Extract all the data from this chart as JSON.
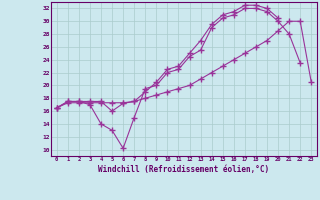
{
  "xlabel": "Windchill (Refroidissement éolien,°C)",
  "bg_color": "#cce8ee",
  "grid_color": "#aacccc",
  "line_color": "#993399",
  "xlim": [
    -0.5,
    23.5
  ],
  "ylim": [
    9,
    33
  ],
  "xticks": [
    0,
    1,
    2,
    3,
    4,
    5,
    6,
    7,
    8,
    9,
    10,
    11,
    12,
    13,
    14,
    15,
    16,
    17,
    18,
    19,
    20,
    21,
    22,
    23
  ],
  "yticks": [
    10,
    12,
    14,
    16,
    18,
    20,
    22,
    24,
    26,
    28,
    30,
    32
  ],
  "line1_x": [
    0,
    1,
    2,
    3,
    4,
    5,
    6,
    7,
    8,
    9,
    10,
    11,
    12,
    13,
    14,
    15,
    16,
    17,
    18,
    19,
    20,
    21,
    22
  ],
  "line1_y": [
    16.5,
    17.5,
    17.5,
    17.0,
    14.0,
    13.0,
    10.2,
    15.0,
    19.5,
    20.0,
    22.0,
    22.5,
    24.5,
    25.5,
    29.0,
    30.5,
    31.0,
    32.0,
    32.0,
    31.5,
    30.0,
    28.0,
    23.5
  ],
  "line2_x": [
    0,
    1,
    2,
    3,
    4,
    5,
    6,
    7,
    8,
    9,
    10,
    11,
    12,
    13,
    14,
    15,
    16,
    17,
    18,
    19,
    20,
    21,
    22,
    23
  ],
  "line2_y": [
    16.5,
    17.3,
    17.3,
    17.3,
    17.3,
    17.3,
    17.3,
    17.5,
    18.0,
    18.5,
    19.0,
    19.5,
    20.0,
    21.0,
    22.0,
    23.0,
    24.0,
    25.0,
    26.0,
    27.0,
    28.5,
    30.0,
    30.0,
    20.5
  ],
  "line3_x": [
    0,
    1,
    2,
    3,
    4,
    5,
    6,
    7,
    8,
    9,
    10,
    11,
    12,
    13,
    14,
    15,
    16,
    17,
    18,
    19,
    20
  ],
  "line3_y": [
    16.5,
    17.5,
    17.5,
    17.5,
    17.5,
    16.0,
    17.2,
    17.5,
    19.0,
    20.5,
    22.5,
    23.0,
    25.0,
    27.0,
    29.5,
    31.0,
    31.5,
    32.5,
    32.5,
    32.0,
    30.5
  ]
}
